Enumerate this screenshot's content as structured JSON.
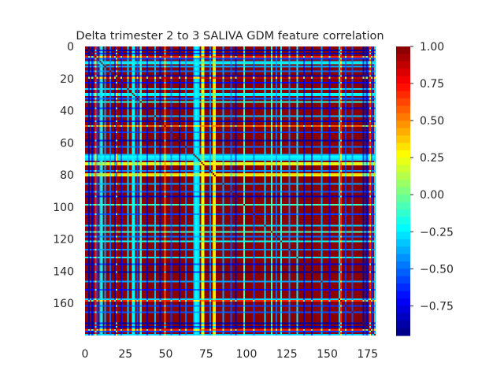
{
  "chart_data": {
    "type": "heatmap",
    "title": "Delta trimester 2 to 3 SALIVA GDM feature correlation",
    "xlabel": "",
    "ylabel": "",
    "n_rows": 180,
    "n_cols": 180,
    "x_tick_labels": [
      "0",
      "25",
      "50",
      "75",
      "100",
      "125",
      "150",
      "175"
    ],
    "x_tick_values": [
      0,
      25,
      50,
      75,
      100,
      125,
      150,
      175
    ],
    "y_tick_labels": [
      "0",
      "20",
      "40",
      "60",
      "80",
      "100",
      "120",
      "140",
      "160"
    ],
    "y_tick_values": [
      0,
      20,
      40,
      60,
      80,
      100,
      120,
      140,
      160
    ],
    "colorbar": {
      "colormap": "jet",
      "vmin": -0.95,
      "vmax": 1.0,
      "n_bins": 39,
      "tick_labels": [
        "1.00",
        "0.75",
        "0.50",
        "0.25",
        "0.00",
        "−0.25",
        "−0.50",
        "−0.75"
      ],
      "tick_values": [
        1.0,
        0.75,
        0.5,
        0.25,
        0.0,
        -0.25,
        -0.5,
        -0.75
      ]
    },
    "feature_profile": {
      "note_values_are_correlation_levels": true,
      "band_values": [
        0.98,
        0.98,
        -0.9,
        0.95,
        -0.85,
        0.98,
        0.7,
        -0.6,
        0.98,
        -0.3,
        -0.2,
        0.98,
        -0.4,
        0.98,
        0.98,
        -0.5,
        0.98,
        0.98,
        -0.85,
        0.9,
        0.98,
        0.98,
        -0.7,
        0.98,
        0.98,
        0.98,
        -0.3,
        0.98,
        0.98,
        -0.2,
        -0.25,
        0.98,
        -0.55,
        0.98,
        -0.15,
        0.98,
        0.98,
        0.98,
        -0.8,
        0.98,
        0.98,
        0.98,
        0.98,
        -0.35,
        0.98,
        0.98,
        -0.85,
        0.98,
        0.98,
        0.6,
        0.98,
        0.98,
        0.98,
        -0.6,
        0.98,
        0.98,
        0.98,
        0.98,
        -0.9,
        0.98,
        0.98,
        0.98,
        -0.5,
        0.98,
        0.98,
        0.98,
        0.98,
        -0.35,
        -0.2,
        -0.25,
        -0.3,
        0.98,
        0.2,
        0.3,
        0.98,
        0.98,
        0.98,
        -0.45,
        0.98,
        0.35,
        0.3,
        0.98,
        0.98,
        0.98,
        0.98,
        -0.4,
        0.98,
        0.98,
        0.98,
        0.98,
        -0.55,
        0.98,
        0.98,
        -0.85,
        0.98,
        0.98,
        0.98,
        0.98,
        -0.1,
        0.98,
        0.98,
        0.98,
        0.98,
        0.98,
        -0.6,
        0.98,
        0.98,
        0.98,
        0.98,
        0.98,
        0.98,
        -0.3,
        0.98,
        0.98,
        0.98,
        -0.1,
        0.98,
        0.98,
        -0.5,
        0.98,
        0.98,
        -0.2,
        0.98,
        0.98,
        0.98,
        0.98,
        -0.45,
        0.98,
        0.98,
        0.98,
        0.98,
        -0.25,
        0.98,
        0.98,
        0.98,
        -0.8,
        0.98,
        0.98,
        0.98,
        0.98,
        -0.9,
        0.98,
        0.98,
        0.98,
        0.98,
        0.98,
        -0.4,
        0.98,
        0.98,
        0.98,
        0.98,
        -0.7,
        0.98,
        0.98,
        0.98,
        0.98,
        0.98,
        -0.3,
        0.7,
        0.98,
        0.98,
        -0.6,
        0.98,
        0.98,
        0.98,
        -0.55,
        0.98,
        0.98,
        0.98,
        0.98
      ]
    }
  }
}
